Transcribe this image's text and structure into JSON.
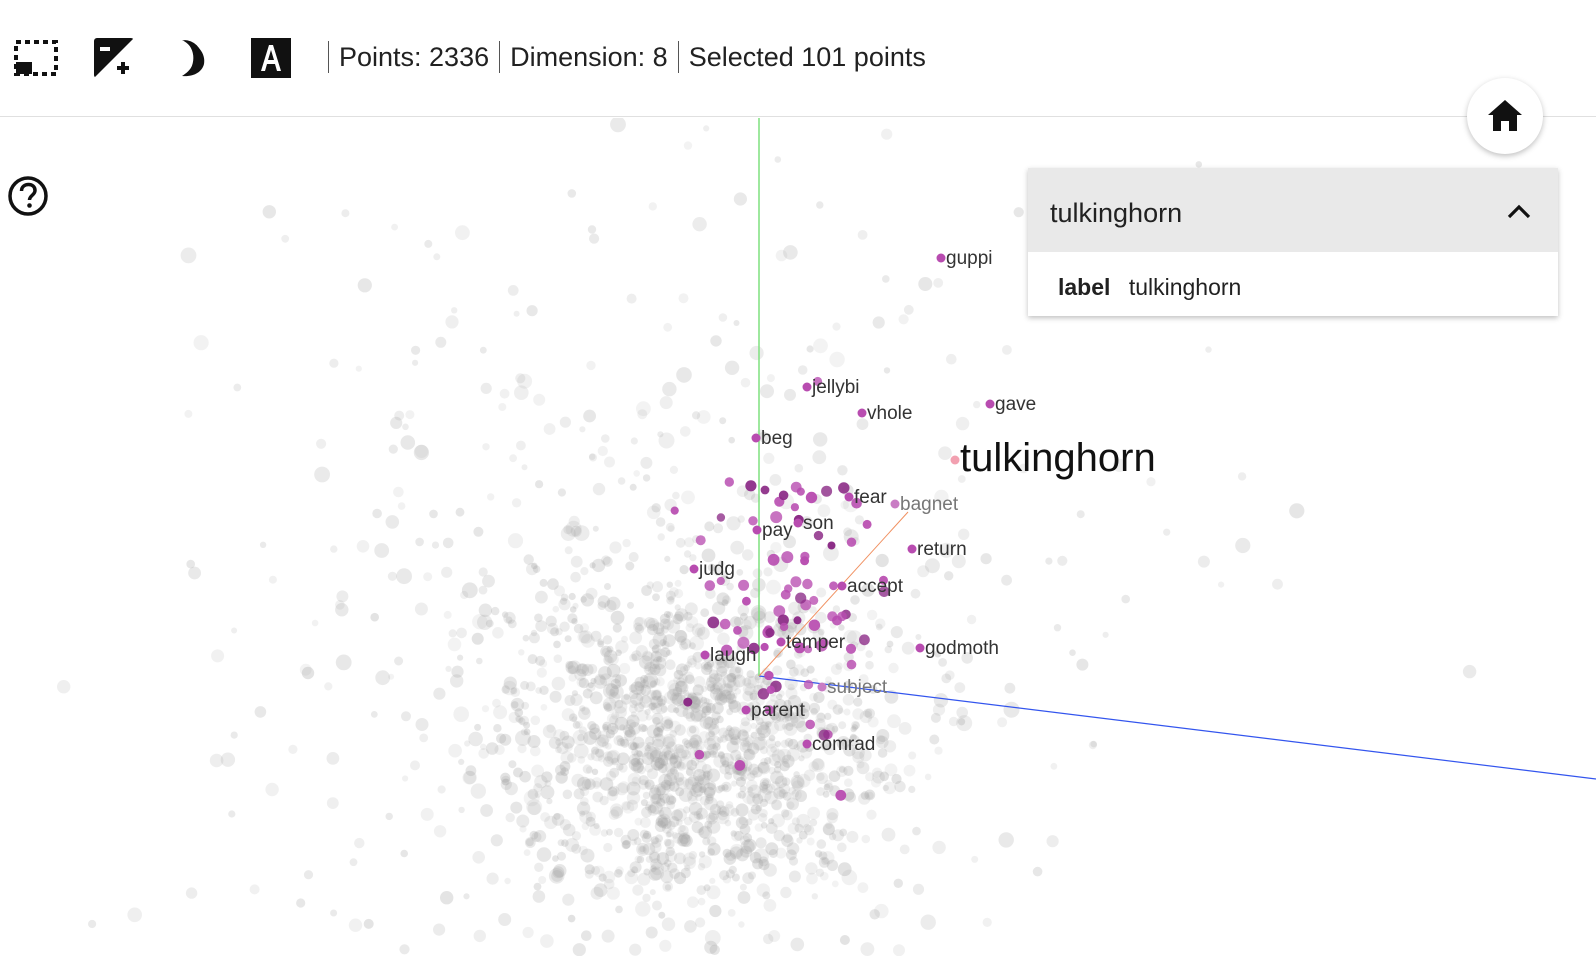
{
  "toolbar": {
    "tools": [
      {
        "name": "selection-icon",
        "label": "Bounding box selection"
      },
      {
        "name": "night-mode-icon",
        "label": "Enable/disable night mode"
      },
      {
        "name": "label-3d-icon",
        "label": "Toggle 3D labels"
      }
    ],
    "points_text": "Points: 2336",
    "dimension_text": "Dimension: 8",
    "selected_text": "Selected 101 points"
  },
  "home_icon": "home-icon",
  "help_icon": "help-icon",
  "inspector": {
    "title": "tulkinghorn",
    "field_key": "label",
    "field_value": "tulkinghorn"
  },
  "labels": {
    "guppi": "guppi",
    "jellybi": "jellybi",
    "vhole": "vhole",
    "gave": "gave",
    "beg": "beg",
    "tulkinghorn": "tulkinghorn",
    "fear": "fear",
    "bagnet": "bagnet",
    "son": "son",
    "pay": "pay",
    "return": "return",
    "judg": "judg",
    "accept": "accept",
    "temper": "temper",
    "godmoth": "godmoth",
    "laugh": "laugh",
    "subject": "subject",
    "parent": "parent",
    "comrad": "comrad"
  },
  "colors": {
    "selected_point": "#b84cb0",
    "selected_point_dark": "#8b2a86",
    "background_point": "#9e9e9e",
    "axis_x": "#3355ee",
    "axis_y": "#7ee07e",
    "axis_z": "#f09060",
    "hover_point": "#f2a0b0"
  }
}
